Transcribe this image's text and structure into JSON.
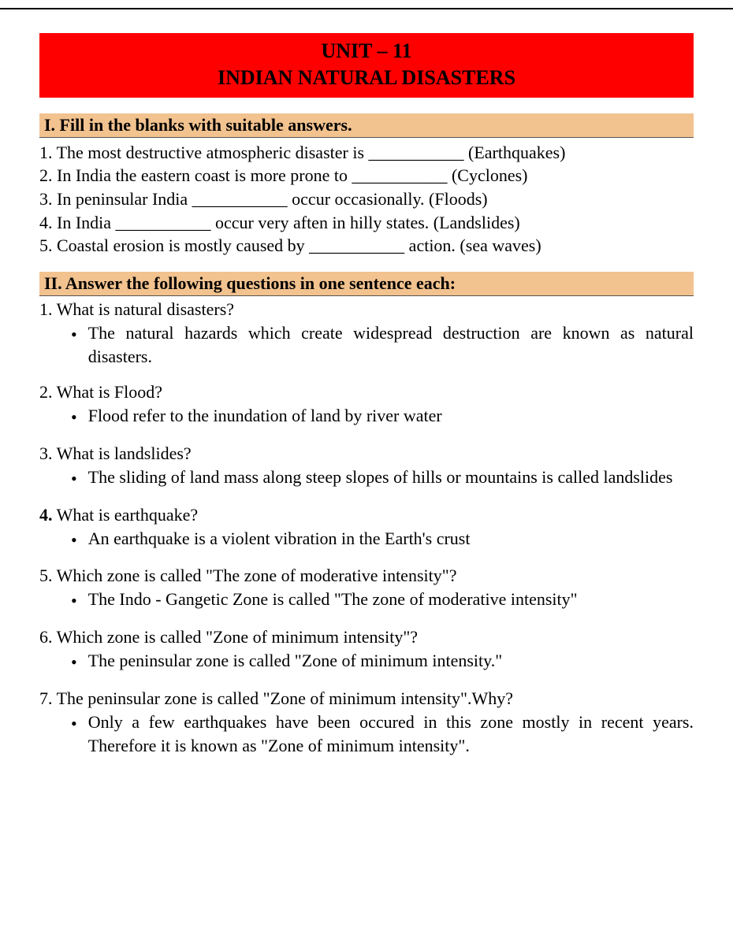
{
  "header": {
    "line1": "UNIT – 11",
    "line2": "INDIAN NATURAL DISASTERS"
  },
  "section1": {
    "title": "I. Fill in the blanks with suitable answers.",
    "items": [
      "1. The most destructive atmospheric disaster is ___________ (Earthquakes)",
      "2. In India the eastern coast is more prone to ___________ (Cyclones)",
      "3. In peninsular India ___________ occur occasionally. (Floods)",
      "4. In India ___________ occur very aften in hilly states. (Landslides)",
      "5. Coastal erosion is mostly caused by ___________ action. (sea waves)"
    ]
  },
  "section2": {
    "title": "II. Answer the following questions in one sentence each:",
    "qa": [
      {
        "q": "1. What is natural disasters?",
        "a": "The natural hazards which create widespread destruction are known as natural disasters.",
        "qbold": false
      },
      {
        "q": "2. What is Flood?",
        "a": "Flood refer to the inundation of land by river water",
        "qbold": false
      },
      {
        "q": "3. What is landslides?",
        "a": "The sliding of land mass along steep slopes of hills or mountains is called landslides",
        "qbold": false
      },
      {
        "q": "4. What is earthquake?",
        "a": "An earthquake is a violent vibration in the Earth's crust",
        "qbold": true,
        "qprefix": "4.",
        "qrest": " What is earthquake?"
      },
      {
        "q": "5. Which zone is called \"The zone of moderative intensity\"?",
        "a": "The Indo - Gangetic Zone is called \"The zone of moderative intensity\"",
        "qbold": false
      },
      {
        "q": "6. Which zone is called \"Zone of minimum intensity\"?",
        "a": "The peninsular zone is called \"Zone of minimum intensity.\"",
        "qbold": false
      },
      {
        "q": "7. The peninsular zone is called  \"Zone of minimum intensity\".Why?",
        "a": "Only a few earthquakes have been occured in this zone mostly in recent years. Therefore it is known as \"Zone of minimum intensity\".",
        "qbold": false
      }
    ]
  }
}
